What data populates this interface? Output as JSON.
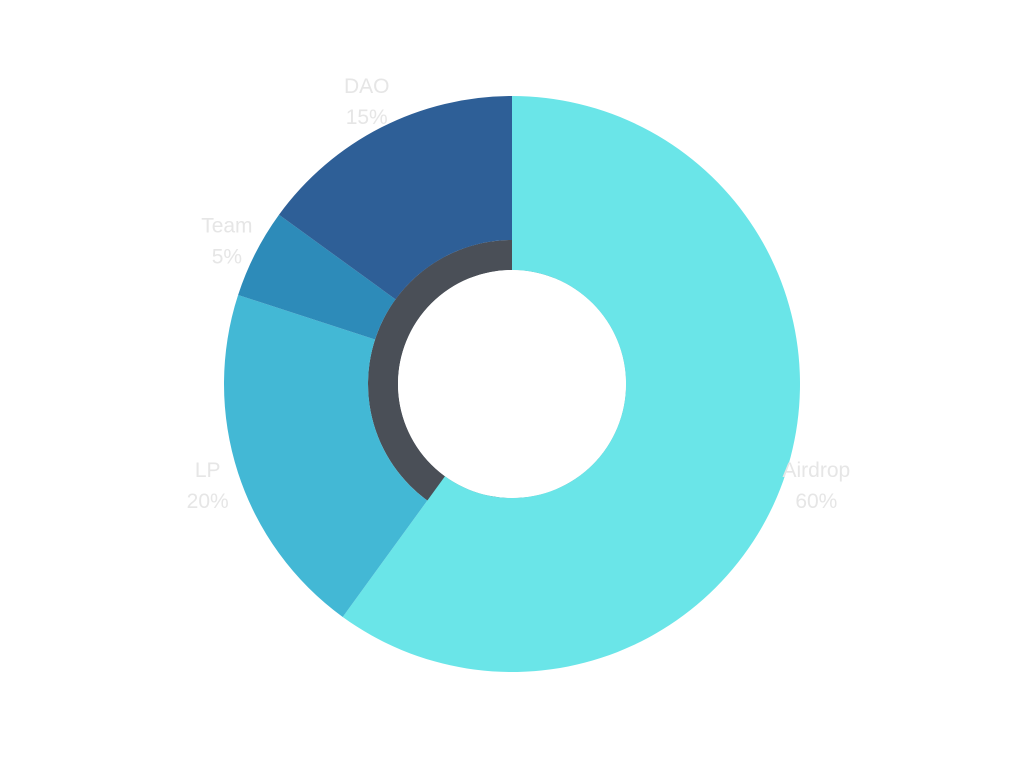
{
  "chart_data": {
    "type": "pie",
    "categories": [
      "Airdrop",
      "LP",
      "Team",
      "DAO"
    ],
    "values": [
      60,
      20,
      5,
      15
    ],
    "percent_labels": [
      "60%",
      "20%",
      "5%",
      "15%"
    ],
    "colors": [
      "#6ae5e8",
      "#43b8d5",
      "#2d8bb9",
      "#2e5f97"
    ],
    "inner_ring_color": "#4a4f57",
    "label_color": "#e6e6e6",
    "title": "",
    "legend": "none",
    "start": "top",
    "direction": "clockwise"
  }
}
